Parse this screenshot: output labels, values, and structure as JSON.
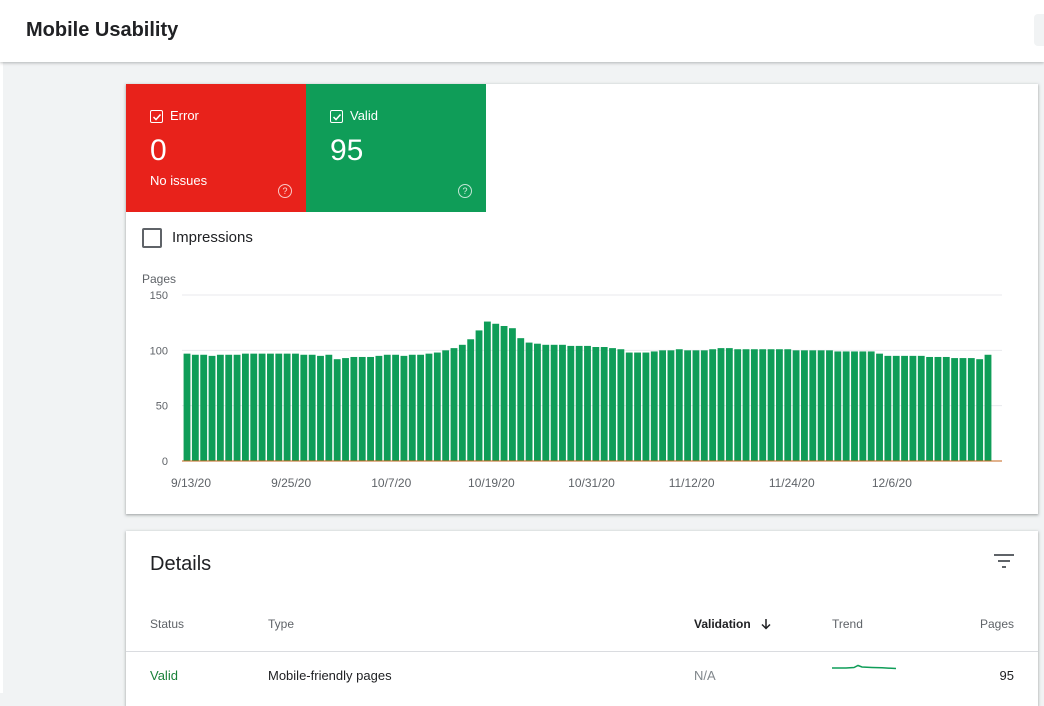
{
  "header": {
    "title": "Mobile Usability"
  },
  "tiles": {
    "error": {
      "label": "Error",
      "count": "0",
      "subtitle": "No issues",
      "help": "?",
      "color": "#e8221b"
    },
    "valid": {
      "label": "Valid",
      "count": "95",
      "help": "?",
      "color": "#0f9d58"
    }
  },
  "impressions": {
    "label": "Impressions",
    "checked": false
  },
  "chart_data": {
    "type": "bar",
    "ylabel": "Pages",
    "ylim": [
      0,
      150
    ],
    "yticks": [
      "150",
      "100",
      "50",
      "0"
    ],
    "xtick_labels": [
      "9/13/20",
      "9/25/20",
      "10/7/20",
      "10/19/20",
      "10/31/20",
      "11/12/20",
      "11/24/20",
      "12/6/20"
    ],
    "series": [
      {
        "color": "#0f9d58",
        "values": [
          97,
          96,
          96,
          95,
          96,
          96,
          96,
          97,
          97,
          97,
          97,
          97,
          97,
          97,
          96,
          96,
          95,
          96,
          92,
          93,
          94,
          94,
          94,
          95,
          96,
          96,
          95,
          96,
          96,
          97,
          98,
          100,
          102,
          105,
          110,
          118,
          126,
          124,
          122,
          120,
          111,
          107,
          106,
          105,
          105,
          105,
          104,
          104,
          104,
          103,
          103,
          102,
          101,
          98,
          98,
          98,
          99,
          100,
          100,
          101,
          100,
          100,
          100,
          101,
          102,
          102,
          101,
          101,
          101,
          101,
          101,
          101,
          101,
          100,
          100,
          100,
          100,
          100,
          99,
          99,
          99,
          99,
          99,
          97,
          95,
          95,
          95,
          95,
          95,
          94,
          94,
          94,
          93,
          93,
          93,
          92,
          96
        ]
      }
    ]
  },
  "details": {
    "title": "Details",
    "columns": {
      "status": "Status",
      "type": "Type",
      "validation": "Validation",
      "trend": "Trend",
      "pages": "Pages"
    },
    "rows": [
      {
        "status": "Valid",
        "type": "Mobile-friendly pages",
        "validation": "N/A",
        "pages": "95"
      }
    ]
  }
}
